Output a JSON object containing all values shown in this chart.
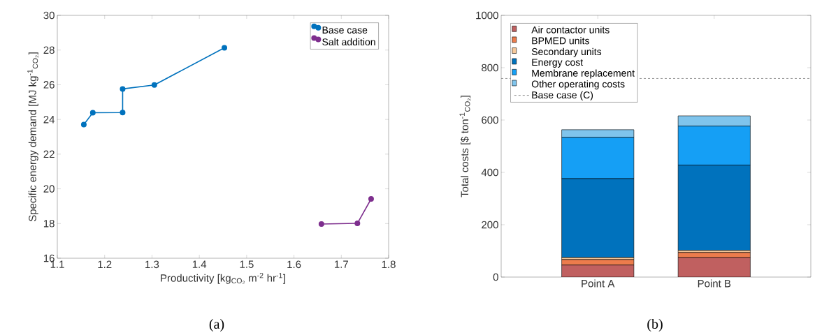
{
  "chart_data": [
    {
      "type": "line",
      "xlabel": "Productivity [kg$_{CO₂}$ m$^{-2}$ hr$^{-1}$]",
      "ylabel": "Specific energy demand [MJ kg$^{-1}$$_{CO₂}$]",
      "annotations": [
        "(a)"
      ],
      "series": [
        {
          "name": "Base case",
          "color": "#0072bd",
          "x": [
            1.156,
            1.175,
            1.238,
            1.238,
            1.305,
            1.453
          ],
          "values": [
            23.7,
            24.39,
            24.4,
            25.76,
            25.99,
            28.13
          ]
        },
        {
          "name": "Salt addition",
          "color": "#7e2f8e",
          "x": [
            1.658,
            1.734,
            1.763
          ],
          "values": [
            17.97,
            18.01,
            19.42
          ]
        }
      ],
      "xlim": [
        1.1,
        1.8
      ],
      "xticks": [
        1.1,
        1.2,
        1.3,
        1.4,
        1.5,
        1.6,
        1.7,
        1.8
      ],
      "ylim": [
        16,
        30
      ],
      "yticks": [
        16,
        18,
        20,
        22,
        24,
        26,
        28,
        30
      ],
      "marker": "circle",
      "line_style": "solid",
      "legend": "top right",
      "grid": false
    },
    {
      "type": "bar",
      "stacked": true,
      "ylabel": "Total costs [$ ton$^{-1}$$_{CO₂}$]",
      "annotations": [
        "(b)"
      ],
      "categories": [
        "Point A",
        "Point B"
      ],
      "series": [
        {
          "name": "Air contactor units",
          "color": "#c06060",
          "values": [
            46,
            75
          ]
        },
        {
          "name": "BPMED units",
          "color": "#ec7c4c",
          "values": [
            21,
            19
          ]
        },
        {
          "name": "Secondary units",
          "color": "#f5c89a",
          "values": [
            8,
            8
          ]
        },
        {
          "name": "Energy cost",
          "color": "#0072bd",
          "values": [
            301,
            326
          ]
        },
        {
          "name": "Membrane replacement",
          "color": "#159ff5",
          "values": [
            158,
            149
          ]
        },
        {
          "name": "Other operating costs",
          "color": "#7fc4ec",
          "values": [
            29,
            39
          ]
        }
      ],
      "ref_lines": [
        {
          "axis": "y",
          "value": 759,
          "label": "Base case (C)",
          "color": "#808080",
          "line_style": "dashed"
        }
      ],
      "ylim": [
        0,
        1000
      ],
      "yticks": [
        0,
        200,
        400,
        600,
        800,
        1000
      ],
      "legend": "top left",
      "grid": false
    }
  ]
}
